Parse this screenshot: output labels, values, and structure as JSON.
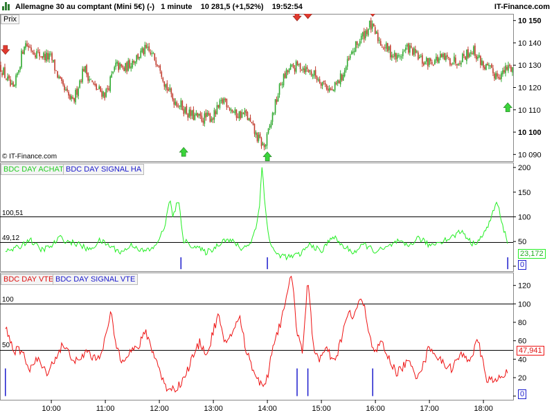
{
  "header": {
    "instrument": "Allemagne 30 au comptant (Mini 5€) (-)",
    "timeframe": "1 minute",
    "last_price": "10 281,5 (+1,52%)",
    "time": "19:52:54",
    "brand": "IT-Finance.com"
  },
  "price_panel": {
    "tab": "Prix",
    "copyright": "© IT-Finance.com"
  },
  "ha_panel": {
    "label_achat": "BDC DAY ACHAT",
    "label_signal": "BDC DAY SIGNAL HA",
    "level_high": "100,51",
    "level_low": "49,12",
    "last_value": "23,172",
    "signal_value": "0"
  },
  "vte_panel": {
    "label_vte": "BDC DAY VTE",
    "label_signal": "BDC DAY SIGNAL VTE",
    "level_high": "100",
    "level_low": "50",
    "last_value": "47,941",
    "signal_value": "0"
  },
  "colors": {
    "up": "#2ea82e",
    "down": "#c0392b",
    "ha_line": "#22ee22",
    "vte_line": "#ee1111",
    "signal": "#1a1acc"
  },
  "chart_data": [
    {
      "type": "candlestick",
      "x_ticks": [
        "10:00",
        "11:00",
        "12:00",
        "13:00",
        "14:00",
        "15:00",
        "16:00",
        "17:00",
        "18:00"
      ],
      "y_ticks": [
        10090,
        10100,
        10110,
        10120,
        10130,
        10140,
        10150
      ],
      "ylim": [
        10087,
        10153
      ],
      "path": [
        [
          9.15,
          10125
        ],
        [
          9.3,
          10118
        ],
        [
          9.5,
          10140
        ],
        [
          9.75,
          10135
        ],
        [
          10.0,
          10133
        ],
        [
          10.2,
          10120
        ],
        [
          10.4,
          10113
        ],
        [
          10.6,
          10129
        ],
        [
          10.8,
          10120
        ],
        [
          11.0,
          10117
        ],
        [
          11.2,
          10130
        ],
        [
          11.35,
          10128
        ],
        [
          11.5,
          10132
        ],
        [
          11.75,
          10137
        ],
        [
          12.0,
          10131
        ],
        [
          12.1,
          10122
        ],
        [
          12.25,
          10115
        ],
        [
          12.4,
          10112
        ],
        [
          12.55,
          10108
        ],
        [
          12.75,
          10106
        ],
        [
          13.0,
          10107
        ],
        [
          13.2,
          10115
        ],
        [
          13.4,
          10108
        ],
        [
          13.6,
          10108
        ],
        [
          13.8,
          10098
        ],
        [
          13.95,
          10093
        ],
        [
          14.1,
          10108
        ],
        [
          14.25,
          10122
        ],
        [
          14.4,
          10128
        ],
        [
          14.6,
          10130
        ],
        [
          14.8,
          10127
        ],
        [
          15.0,
          10123
        ],
        [
          15.2,
          10118
        ],
        [
          15.4,
          10126
        ],
        [
          15.6,
          10137
        ],
        [
          15.9,
          10148
        ],
        [
          16.1,
          10140
        ],
        [
          16.4,
          10133
        ],
        [
          16.6,
          10138
        ],
        [
          16.9,
          10131
        ],
        [
          17.2,
          10133
        ],
        [
          17.5,
          10132
        ],
        [
          17.8,
          10137
        ],
        [
          18.0,
          10130
        ],
        [
          18.2,
          10126
        ],
        [
          18.35,
          10126
        ],
        [
          18.45,
          10129
        ]
      ],
      "arrows_down": [
        [
          9.15,
          10137
        ],
        [
          14.55,
          10152
        ],
        [
          14.75,
          10153
        ],
        [
          15.95,
          10154
        ]
      ],
      "arrows_up": [
        [
          12.45,
          10091
        ],
        [
          14.0,
          10089
        ],
        [
          18.45,
          10111
        ]
      ]
    },
    {
      "type": "line",
      "name": "BDC DAY ACHAT",
      "y_ticks": [
        0,
        50,
        100,
        150,
        200
      ],
      "ylim": [
        -10,
        210
      ],
      "hlines": [
        100.51,
        49.12
      ],
      "path": [
        [
          9.15,
          30
        ],
        [
          9.4,
          38
        ],
        [
          9.6,
          55
        ],
        [
          9.8,
          33
        ],
        [
          10.0,
          40
        ],
        [
          10.15,
          58
        ],
        [
          10.3,
          50
        ],
        [
          10.5,
          45
        ],
        [
          10.7,
          32
        ],
        [
          10.9,
          52
        ],
        [
          11.1,
          40
        ],
        [
          11.3,
          28
        ],
        [
          11.5,
          44
        ],
        [
          11.7,
          30
        ],
        [
          11.9,
          36
        ],
        [
          12.0,
          58
        ],
        [
          12.1,
          75
        ],
        [
          12.15,
          120
        ],
        [
          12.2,
          130
        ],
        [
          12.25,
          100
        ],
        [
          12.3,
          118
        ],
        [
          12.35,
          132
        ],
        [
          12.4,
          95
        ],
        [
          12.45,
          52
        ],
        [
          12.55,
          45
        ],
        [
          12.7,
          38
        ],
        [
          12.85,
          28
        ],
        [
          13.0,
          35
        ],
        [
          13.2,
          55
        ],
        [
          13.4,
          48
        ],
        [
          13.5,
          35
        ],
        [
          13.6,
          40
        ],
        [
          13.7,
          50
        ],
        [
          13.8,
          82
        ],
        [
          13.85,
          120
        ],
        [
          13.9,
          205
        ],
        [
          13.95,
          130
        ],
        [
          14.0,
          80
        ],
        [
          14.05,
          48
        ],
        [
          14.15,
          25
        ],
        [
          14.4,
          18
        ],
        [
          14.6,
          24
        ],
        [
          14.8,
          45
        ],
        [
          15.0,
          28
        ],
        [
          15.2,
          62
        ],
        [
          15.4,
          40
        ],
        [
          15.6,
          28
        ],
        [
          15.8,
          44
        ],
        [
          16.0,
          30
        ],
        [
          16.2,
          36
        ],
        [
          16.4,
          50
        ],
        [
          16.6,
          40
        ],
        [
          16.8,
          58
        ],
        [
          17.0,
          42
        ],
        [
          17.2,
          50
        ],
        [
          17.4,
          58
        ],
        [
          17.6,
          72
        ],
        [
          17.8,
          44
        ],
        [
          18.0,
          62
        ],
        [
          18.15,
          100
        ],
        [
          18.25,
          132
        ],
        [
          18.35,
          82
        ],
        [
          18.45,
          50
        ]
      ],
      "signal_spikes": [
        12.4,
        14.0,
        18.45
      ]
    },
    {
      "type": "line",
      "name": "BDC DAY VTE",
      "y_ticks": [
        0,
        20,
        40,
        60,
        80,
        100,
        120
      ],
      "ylim": [
        -4,
        134
      ],
      "hlines": [
        100,
        50
      ],
      "path": [
        [
          9.15,
          75
        ],
        [
          9.3,
          50
        ],
        [
          9.45,
          48
        ],
        [
          9.6,
          30
        ],
        [
          9.75,
          40
        ],
        [
          9.9,
          25
        ],
        [
          10.05,
          38
        ],
        [
          10.2,
          55
        ],
        [
          10.35,
          45
        ],
        [
          10.5,
          35
        ],
        [
          10.65,
          50
        ],
        [
          10.8,
          40
        ],
        [
          10.9,
          45
        ],
        [
          11.0,
          62
        ],
        [
          11.1,
          90
        ],
        [
          11.2,
          55
        ],
        [
          11.3,
          40
        ],
        [
          11.45,
          48
        ],
        [
          11.6,
          52
        ],
        [
          11.75,
          70
        ],
        [
          11.9,
          45
        ],
        [
          12.0,
          30
        ],
        [
          12.1,
          10
        ],
        [
          12.3,
          8
        ],
        [
          12.45,
          18
        ],
        [
          12.6,
          40
        ],
        [
          12.75,
          58
        ],
        [
          12.9,
          45
        ],
        [
          13.0,
          72
        ],
        [
          13.1,
          88
        ],
        [
          13.2,
          55
        ],
        [
          13.35,
          70
        ],
        [
          13.5,
          85
        ],
        [
          13.6,
          50
        ],
        [
          13.75,
          28
        ],
        [
          13.9,
          10
        ],
        [
          14.0,
          20
        ],
        [
          14.1,
          55
        ],
        [
          14.25,
          80
        ],
        [
          14.35,
          110
        ],
        [
          14.45,
          130
        ],
        [
          14.55,
          70
        ],
        [
          14.65,
          50
        ],
        [
          14.75,
          125
        ],
        [
          14.85,
          55
        ],
        [
          14.95,
          40
        ],
        [
          15.1,
          50
        ],
        [
          15.25,
          35
        ],
        [
          15.4,
          70
        ],
        [
          15.5,
          90
        ],
        [
          15.6,
          85
        ],
        [
          15.7,
          105
        ],
        [
          15.8,
          95
        ],
        [
          15.9,
          65
        ],
        [
          16.0,
          45
        ],
        [
          16.1,
          60
        ],
        [
          16.25,
          40
        ],
        [
          16.4,
          25
        ],
        [
          16.6,
          38
        ],
        [
          16.75,
          22
        ],
        [
          16.9,
          35
        ],
        [
          17.0,
          55
        ],
        [
          17.2,
          38
        ],
        [
          17.4,
          30
        ],
        [
          17.6,
          45
        ],
        [
          17.75,
          40
        ],
        [
          17.9,
          60
        ],
        [
          18.05,
          20
        ],
        [
          18.2,
          15
        ],
        [
          18.35,
          22
        ],
        [
          18.45,
          30
        ]
      ],
      "signal_spikes": [
        9.15,
        14.55,
        14.75,
        15.95
      ]
    }
  ]
}
